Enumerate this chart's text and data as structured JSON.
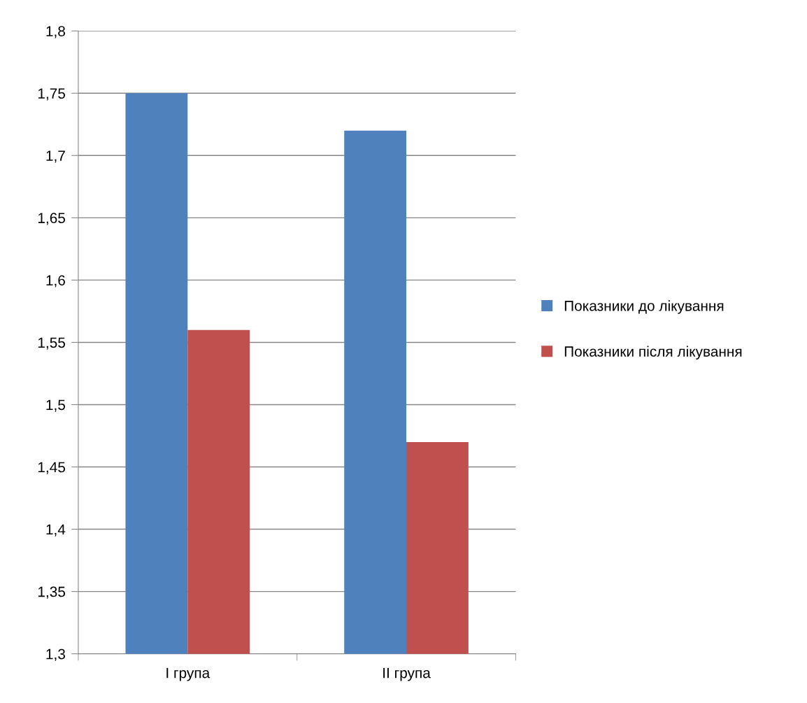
{
  "chart_data": {
    "type": "bar",
    "categories": [
      "I група",
      "II група"
    ],
    "series": [
      {
        "name": "Показники до лікування",
        "color": "#4f81bd",
        "values": [
          1.75,
          1.72
        ]
      },
      {
        "name": "Показники після лікування",
        "color": "#c0504d",
        "values": [
          1.56,
          1.47
        ]
      }
    ],
    "ylim": [
      1.3,
      1.8
    ],
    "yticks": [
      {
        "value": 1.3,
        "label": "1,3"
      },
      {
        "value": 1.35,
        "label": "1,35"
      },
      {
        "value": 1.4,
        "label": "1,4"
      },
      {
        "value": 1.45,
        "label": "1,45"
      },
      {
        "value": 1.5,
        "label": "1,5"
      },
      {
        "value": 1.55,
        "label": "1,55"
      },
      {
        "value": 1.6,
        "label": "1,6"
      },
      {
        "value": 1.65,
        "label": "1,65"
      },
      {
        "value": 1.7,
        "label": "1,7"
      },
      {
        "value": 1.75,
        "label": "1,75"
      },
      {
        "value": 1.8,
        "label": "1,8"
      }
    ],
    "grid": "y",
    "legend": "right"
  }
}
